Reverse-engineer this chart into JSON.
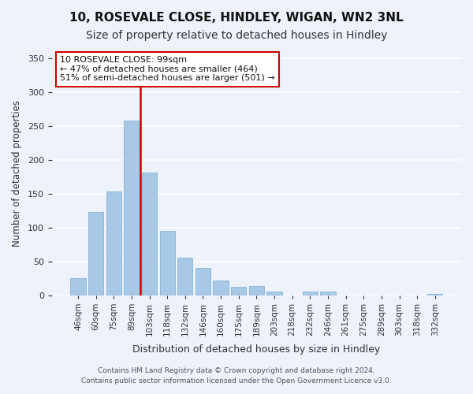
{
  "title": "10, ROSEVALE CLOSE, HINDLEY, WIGAN, WN2 3NL",
  "subtitle": "Size of property relative to detached houses in Hindley",
  "xlabel": "Distribution of detached houses by size in Hindley",
  "ylabel": "Number of detached properties",
  "bar_labels": [
    "46sqm",
    "60sqm",
    "75sqm",
    "89sqm",
    "103sqm",
    "118sqm",
    "132sqm",
    "146sqm",
    "160sqm",
    "175sqm",
    "189sqm",
    "203sqm",
    "218sqm",
    "232sqm",
    "246sqm",
    "261sqm",
    "275sqm",
    "289sqm",
    "303sqm",
    "318sqm",
    "332sqm"
  ],
  "bar_values": [
    25,
    123,
    153,
    258,
    181,
    95,
    55,
    40,
    22,
    12,
    14,
    6,
    0,
    6,
    5,
    0,
    0,
    0,
    0,
    0,
    2
  ],
  "bar_color": "#a8c8e8",
  "bar_edge_color": "#7aadcf",
  "vline_color": "#cc0000",
  "vline_position": 3.5,
  "annotation_line1": "10 ROSEVALE CLOSE: 99sqm",
  "annotation_line2": "← 47% of detached houses are smaller (464)",
  "annotation_line3": "51% of semi-detached houses are larger (501) →",
  "annotation_box_color": "#ffffff",
  "annotation_box_edge_color": "#cc0000",
  "ylim": [
    0,
    360
  ],
  "yticks": [
    0,
    50,
    100,
    150,
    200,
    250,
    300,
    350
  ],
  "footer_line1": "Contains HM Land Registry data © Crown copyright and database right 2024.",
  "footer_line2": "Contains public sector information licensed under the Open Government Licence v3.0.",
  "background_color": "#eef2fb",
  "title_fontsize": 11,
  "subtitle_fontsize": 10
}
